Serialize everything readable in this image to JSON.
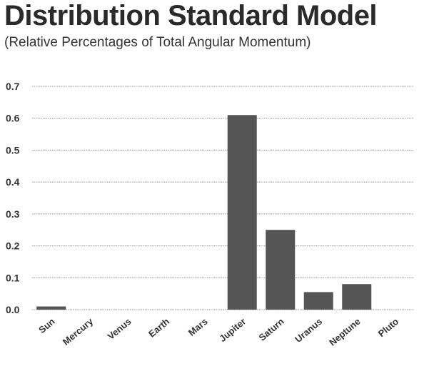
{
  "chart_data": {
    "type": "bar",
    "title": "Distribution Standard Model",
    "subtitle": "(Relative Percentages of Total Angular Momentum)",
    "xlabel": "",
    "ylabel": "",
    "categories": [
      "Sun",
      "Mercury",
      "Venus",
      "Earth",
      "Mars",
      "Jupiter",
      "Saturn",
      "Uranus",
      "Neptune",
      "Pluto"
    ],
    "values": [
      0.01,
      0.0,
      0.0,
      0.0,
      0.0,
      0.61,
      0.25,
      0.055,
      0.08,
      0.0
    ],
    "ylim": [
      0,
      0.7
    ],
    "yticks": [
      "0.0",
      "0.1",
      "0.2",
      "0.3",
      "0.4",
      "0.5",
      "0.6",
      "0.7"
    ],
    "grid": true,
    "bar_color": "#555555",
    "grid_color": "#999999"
  }
}
